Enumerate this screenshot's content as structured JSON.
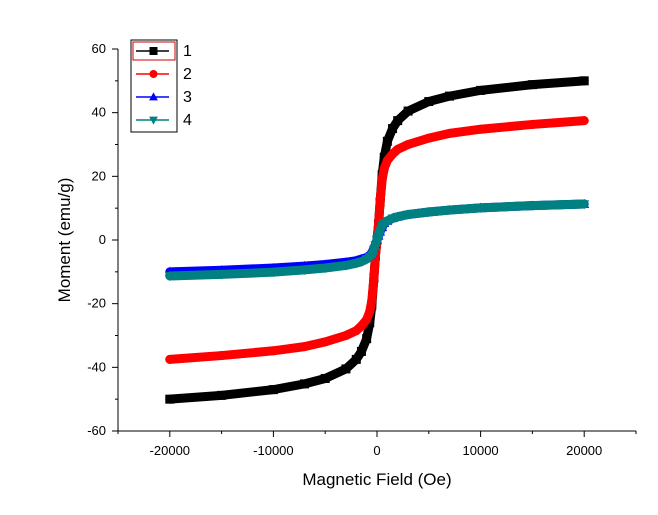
{
  "chart_data": {
    "type": "line",
    "title": "",
    "xlabel": "Magnetic Field (Oe)",
    "ylabel": "Moment (emu/g)",
    "xlim": [
      -25000,
      25000
    ],
    "ylim": [
      -60,
      60
    ],
    "xticks": [
      -20000,
      -10000,
      0,
      10000,
      20000
    ],
    "yticks": [
      -60,
      -40,
      -20,
      0,
      20,
      40,
      60
    ],
    "grid": false,
    "legend_position": "top-left",
    "series": [
      {
        "name": "1",
        "color": "#000000",
        "marker": "square",
        "x": [
          -20000,
          -15000,
          -10000,
          -7000,
          -5000,
          -3000,
          -2000,
          -1500,
          -1000,
          -700,
          -500,
          -300,
          -150,
          0,
          150,
          300,
          500,
          700,
          1000,
          1500,
          2000,
          3000,
          5000,
          7000,
          10000,
          15000,
          20000
        ],
        "y": [
          -50,
          -48.8,
          -47,
          -45.2,
          -43.5,
          -40.5,
          -37.5,
          -35,
          -31,
          -26,
          -20.5,
          -12,
          -5,
          0,
          5,
          12,
          20.5,
          26,
          31,
          35,
          37.5,
          40.5,
          43.5,
          45.2,
          47,
          48.8,
          50
        ]
      },
      {
        "name": "2",
        "color": "#ff0000",
        "marker": "circle",
        "x": [
          -20000,
          -15000,
          -10000,
          -7000,
          -5000,
          -3000,
          -2000,
          -1500,
          -1000,
          -700,
          -500,
          -300,
          -150,
          0,
          150,
          300,
          500,
          700,
          1000,
          1500,
          2000,
          3000,
          5000,
          7000,
          10000,
          15000,
          20000
        ],
        "y": [
          -37.5,
          -36.3,
          -34.8,
          -33.5,
          -32,
          -30,
          -28.5,
          -27,
          -25,
          -22.5,
          -19,
          -12,
          -5,
          0,
          5,
          12,
          19,
          22.5,
          25,
          27,
          28.5,
          30,
          32,
          33.5,
          34.8,
          36.3,
          37.5
        ]
      },
      {
        "name": "3",
        "color": "#0000ff",
        "marker": "triangle-up",
        "x": [
          -20000,
          -15000,
          -10000,
          -7000,
          -5000,
          -3000,
          -2000,
          -1500,
          -1000,
          -700,
          -500,
          -300,
          -150,
          0,
          150,
          300,
          500,
          700,
          1000,
          1500,
          2000,
          3000,
          5000,
          7000,
          10000,
          15000,
          20000
        ],
        "y": [
          -10,
          -9.5,
          -8.8,
          -8.2,
          -7.7,
          -7,
          -6.5,
          -6,
          -5.5,
          -4.8,
          -4,
          -2.6,
          -1.3,
          0,
          1.3,
          2.6,
          4,
          5.3,
          6,
          6.8,
          7.3,
          8,
          8.8,
          9.4,
          10.1,
          10.8,
          11.3
        ]
      },
      {
        "name": "4",
        "color": "#008080",
        "marker": "triangle-down",
        "x": [
          -20000,
          -15000,
          -10000,
          -7000,
          -5000,
          -3000,
          -2000,
          -1500,
          -1000,
          -700,
          -500,
          -300,
          -150,
          0,
          150,
          300,
          500,
          700,
          1000,
          1500,
          2000,
          3000,
          5000,
          7000,
          10000,
          15000,
          20000
        ],
        "y": [
          -11.3,
          -10.8,
          -10.1,
          -9.4,
          -8.8,
          -8,
          -7.3,
          -6.8,
          -6,
          -5.3,
          -4.6,
          -3,
          -1.5,
          0,
          1.5,
          3,
          4.6,
          5.3,
          6,
          6.8,
          7.3,
          8,
          8.8,
          9.4,
          10.1,
          10.8,
          11.3
        ]
      }
    ]
  }
}
